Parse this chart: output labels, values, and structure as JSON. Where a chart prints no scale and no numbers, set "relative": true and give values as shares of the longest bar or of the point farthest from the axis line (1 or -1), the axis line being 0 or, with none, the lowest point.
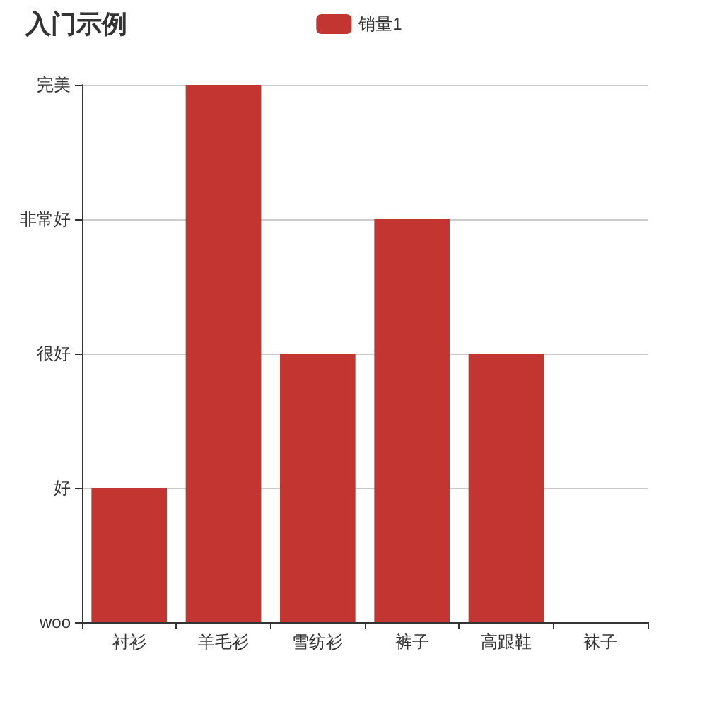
{
  "chart_data": {
    "type": "bar",
    "title": "入门示例",
    "categories": [
      "衬衫",
      "羊毛衫",
      "雪纺衫",
      "裤子",
      "高跟鞋",
      "袜子"
    ],
    "series": [
      {
        "name": "销量1",
        "color": "#c23531",
        "values": [
          0.25,
          1,
          0.5,
          0.75,
          0.5,
          0
        ]
      }
    ],
    "relative": true,
    "annotations": [
      "woo",
      "好",
      "很好",
      "非常好",
      "完美"
    ],
    "grid": "y",
    "legend": "top"
  }
}
